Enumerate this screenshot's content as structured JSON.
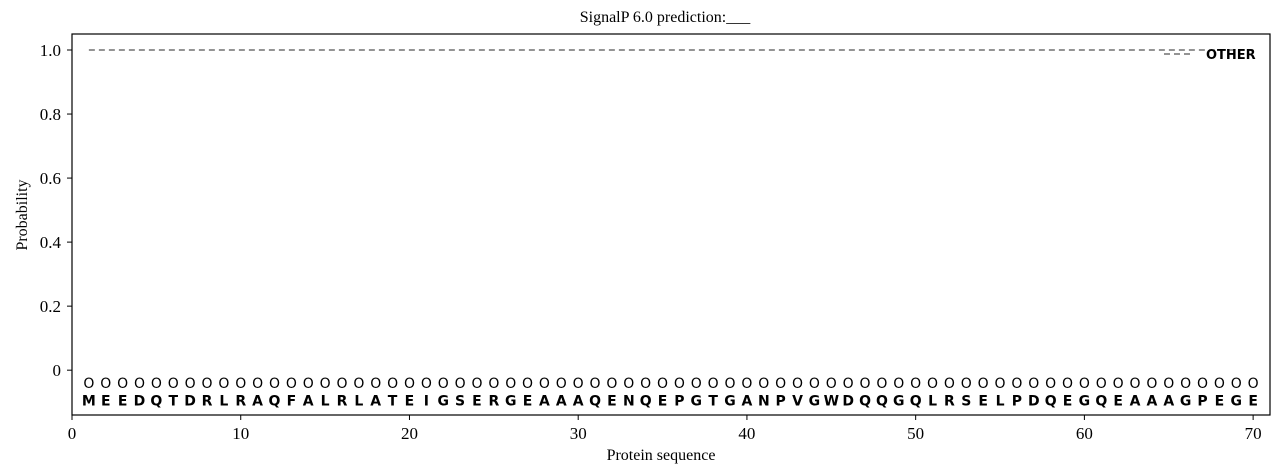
{
  "chart_data": {
    "type": "line",
    "title": "SignalP 6.0 prediction:___",
    "xlabel": "Protein sequence",
    "ylabel": "Probability",
    "xlim": [
      0,
      71
    ],
    "ylim": [
      -0.14,
      1.05
    ],
    "x_ticks": [
      0,
      10,
      20,
      30,
      40,
      50,
      60,
      70
    ],
    "y_ticks": [
      0,
      0.2,
      0.4,
      0.6,
      0.8,
      1.0
    ],
    "y_tick_labels": [
      "0",
      "0.2",
      "0.4",
      "0.6",
      "0.8",
      "1.0"
    ],
    "grid": false,
    "legend_position": "top-right",
    "series": [
      {
        "name": "OTHER",
        "style": "dashed",
        "color": "#555555",
        "x_start": 1,
        "x_end": 70,
        "value": 1.0
      }
    ],
    "state_row": {
      "label": "O",
      "y": -0.04
    },
    "sequence": "MEEDQTDRLRAQFALRLATEIGSERGEAAAQENQEPGTGANPVGWDQQGQLRSELPDQEGQEAAAGPEGE",
    "sequence_y": -0.095
  }
}
